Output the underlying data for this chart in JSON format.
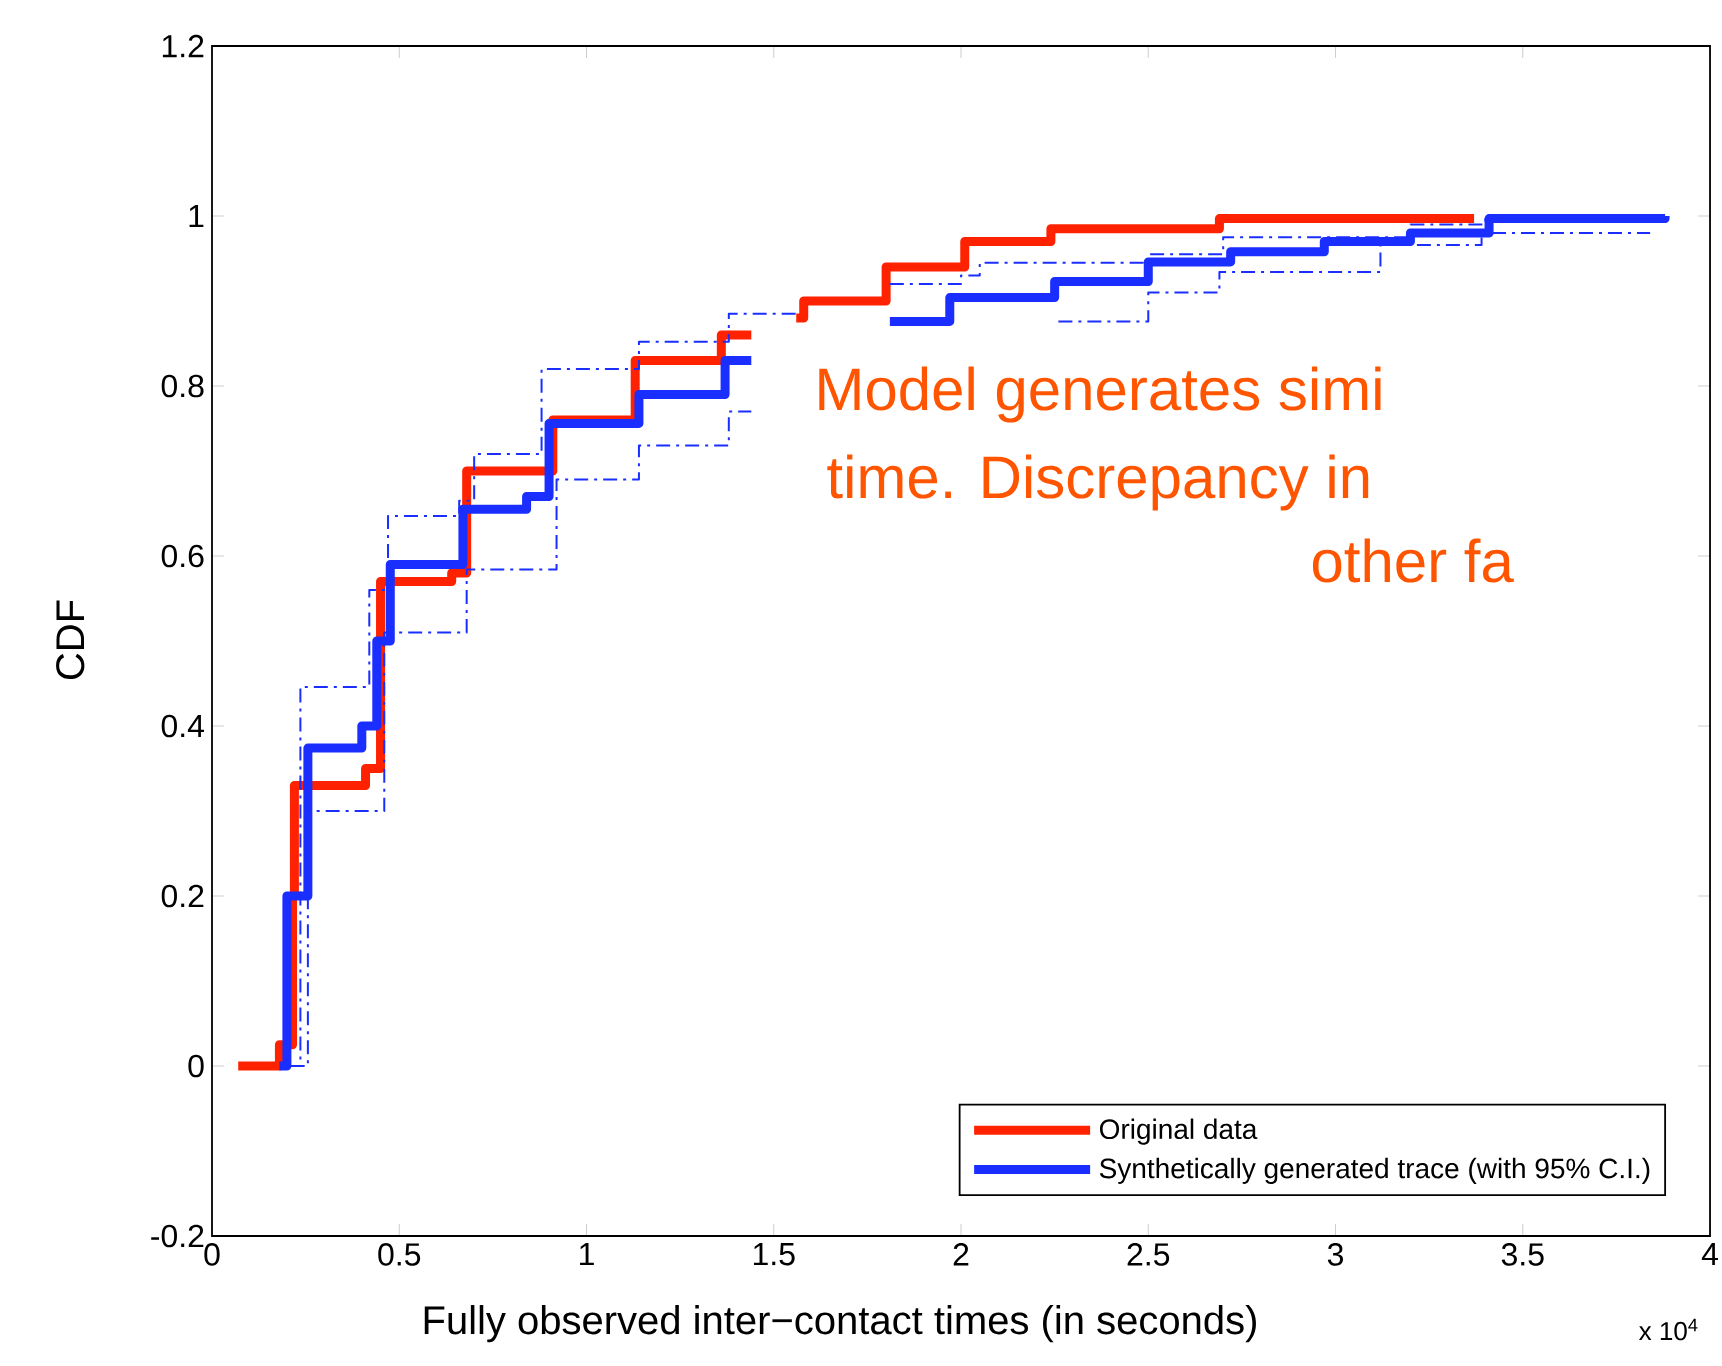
{
  "chart_data": {
    "type": "step",
    "xlabel": "Fully observed inter−contact times (in seconds)",
    "ylabel": "CDF",
    "annotations": [
      "x 10$^{4}$",
      "Model generates simi",
      "time. Discrepancy in",
      "other fa"
    ],
    "xlim": [
      0,
      4
    ],
    "ylim": [
      -0.2,
      1.2
    ],
    "xticks": [
      0,
      0.5,
      1,
      1.5,
      2,
      2.5,
      3,
      3.5,
      4
    ],
    "yticks": [
      -0.2,
      0,
      0.2,
      0.4,
      0.6,
      0.8,
      1,
      1.2
    ],
    "legend": "bottom right",
    "marker": "none",
    "grid": false,
    "series": [
      {
        "name": "Original data",
        "color": "#ff2200",
        "x": [
          0.07,
          0.18,
          0.215,
          0.22,
          0.41,
          0.45,
          0.64,
          0.68,
          0.87,
          0.91,
          1.11,
          1.13,
          1.34,
          1.36,
          1.44,
          1.45,
          1.56,
          1.58,
          1.8,
          2.01,
          2.24,
          2.69,
          3.37
        ],
        "values": [
          0,
          0.025,
          0.2,
          0.33,
          0.35,
          0.57,
          0.58,
          0.7,
          0.7,
          0.76,
          0.76,
          0.83,
          0.83,
          0.86,
          0.86,
          null,
          0.88,
          0.9,
          0.94,
          0.97,
          0.985,
          0.997,
          0.997
        ]
      },
      {
        "name": "Synthetically generated trace (with 95% C.I.)",
        "color": "#1a2eff",
        "x": [
          0.18,
          0.2,
          0.256,
          0.4,
          0.44,
          0.476,
          0.64,
          0.67,
          0.84,
          0.9,
          1.1,
          1.14,
          1.32,
          1.37,
          1.44,
          1.45,
          1.81,
          1.97,
          2.25,
          2.5,
          2.72,
          2.97,
          3.2,
          3.41,
          3.88
        ],
        "values": [
          0,
          0.2,
          0.374,
          0.4,
          0.5,
          0.59,
          0.59,
          0.655,
          0.67,
          0.756,
          0.756,
          0.79,
          0.79,
          0.83,
          0.83,
          null,
          0.876,
          0.904,
          0.923,
          0.946,
          0.958,
          0.97,
          0.98,
          0.997,
          1.0
        ]
      },
      {
        "color": "#1a2eff",
        "line_style": "dashed",
        "x": [
          0.2,
          0.236,
          0.39,
          0.42,
          0.47,
          0.66,
          0.7,
          0.83,
          0.88,
          1.12,
          1.14,
          1.35,
          1.38,
          1.56,
          1.57,
          1.81,
          2.0,
          2.05,
          2.5,
          2.7,
          3.2,
          3.4,
          3.85
        ],
        "values": [
          0,
          0.446,
          0.446,
          0.56,
          0.647,
          0.665,
          0.72,
          0.72,
          0.82,
          0.82,
          0.852,
          0.852,
          0.885,
          0.885,
          null,
          0.92,
          0.93,
          0.945,
          0.955,
          0.975,
          0.99,
          1.0,
          1.0
        ]
      },
      {
        "color": "#1a2eff",
        "line_style": "dashed",
        "x": [
          0.21,
          0.256,
          0.4,
          0.46,
          0.67,
          0.68,
          0.88,
          0.92,
          1.11,
          1.14,
          1.33,
          1.38,
          1.44,
          1.45,
          2.26,
          2.5,
          2.69,
          3.12,
          3.39,
          3.84
        ],
        "values": [
          0,
          0.3,
          0.3,
          0.51,
          0.51,
          0.584,
          0.584,
          0.69,
          0.69,
          0.73,
          0.73,
          0.77,
          0.77,
          null,
          0.876,
          0.91,
          0.934,
          0.966,
          0.98,
          0.98
        ]
      }
    ]
  }
}
